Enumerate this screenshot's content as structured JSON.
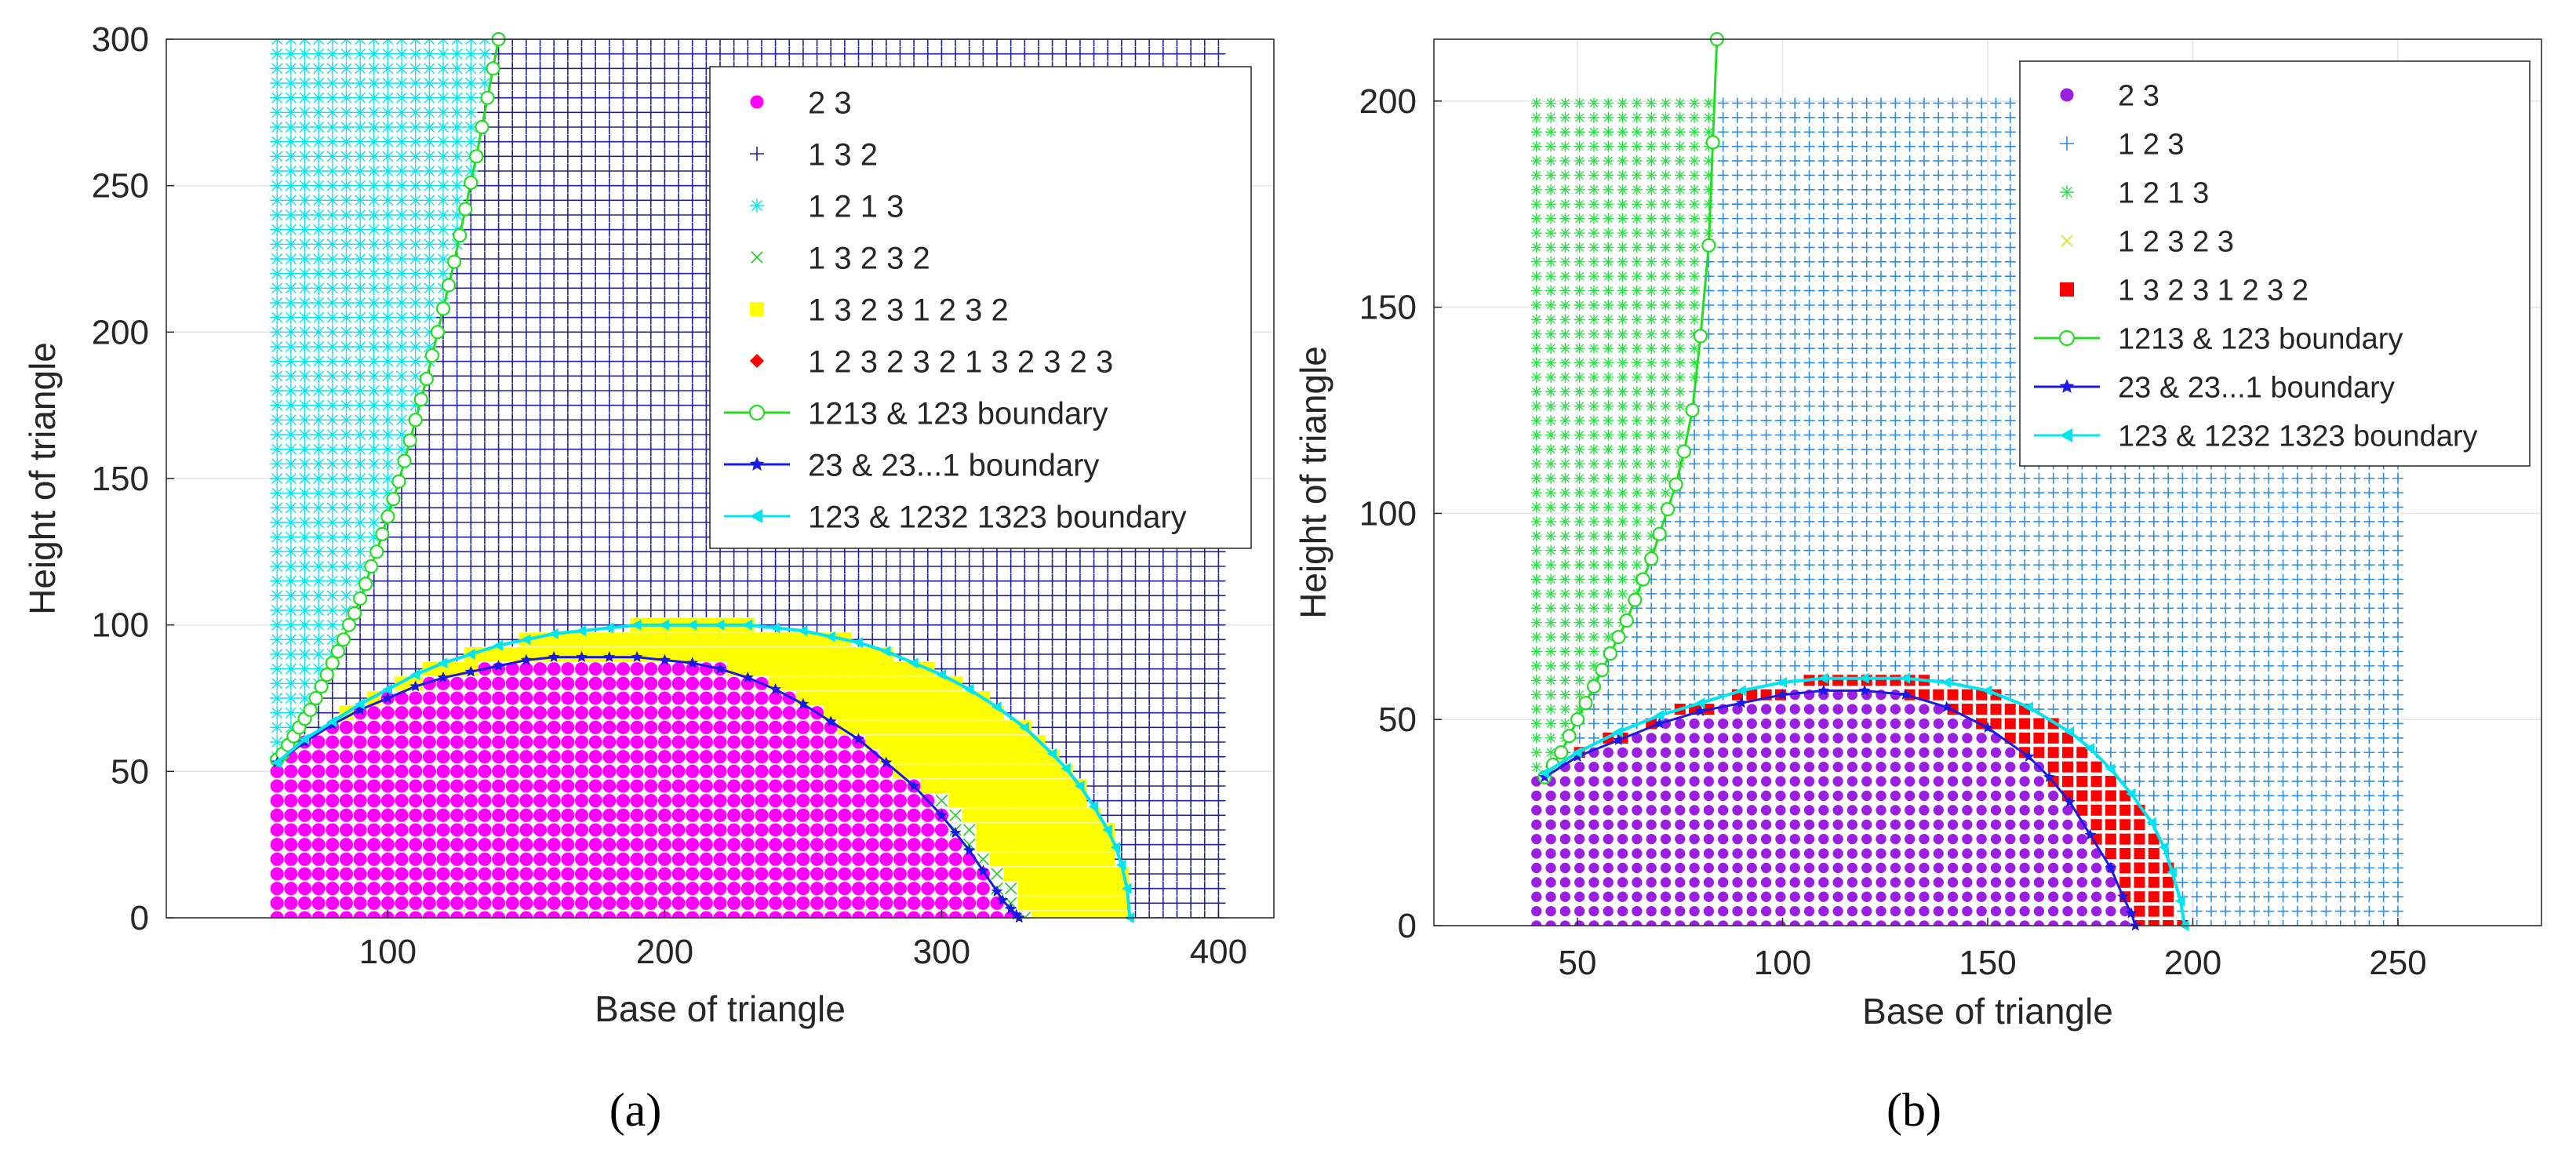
{
  "figure": {
    "panels": [
      {
        "caption": "(a)"
      },
      {
        "caption": "(b)"
      }
    ]
  },
  "chart_data": [
    {
      "type": "scatter",
      "panel_label": "(a)",
      "xlabel": "Base of triangle",
      "ylabel": "Height of triangle",
      "xlim": [
        20,
        420
      ],
      "ylim": [
        0,
        300
      ],
      "xticks": [
        100,
        200,
        300,
        400
      ],
      "yticks": [
        0,
        50,
        100,
        150,
        200,
        250,
        300
      ],
      "grid": true,
      "legend_position": "top-right",
      "grid_x_range": [
        60,
        400
      ],
      "grid_y_range": [
        0,
        300
      ],
      "grid_step": [
        5,
        5
      ],
      "regions": [
        {
          "name": "2  3",
          "color": "#ff00ff",
          "marker": "dot"
        },
        {
          "name": "1  3  2",
          "color": "#1f1f9a",
          "marker": "plus"
        },
        {
          "name": "1  2  1  3",
          "color": "#00e5ee",
          "marker": "asterisk"
        },
        {
          "name": "1  3  2  3  2",
          "color": "#22cc22",
          "marker": "cross"
        },
        {
          "name": "1  3  2  3  1  2  3  2",
          "color": "#ffff00",
          "marker": "square"
        },
        {
          "name": "1  2  3  2  3  2  1  3  2  3  2  3",
          "color": "#ff0000",
          "marker": "diamond"
        }
      ],
      "boundaries": [
        {
          "name": "1213 & 123 boundary",
          "color": "#22dd22",
          "marker": "circle",
          "x": [
            60,
            62,
            64,
            66,
            68,
            70,
            72,
            74,
            76,
            78,
            80,
            82,
            84,
            86,
            88,
            90,
            92,
            94,
            96,
            98,
            100,
            102,
            104,
            106,
            108,
            110,
            112,
            114,
            116,
            118,
            120,
            122,
            124,
            126,
            128,
            130,
            132,
            134,
            136,
            138,
            140
          ],
          "y": [
            54,
            56,
            59,
            62,
            65,
            68,
            71,
            75,
            79,
            83,
            87,
            91,
            95,
            100,
            104,
            109,
            114,
            120,
            125,
            131,
            137,
            143,
            149,
            156,
            163,
            170,
            177,
            184,
            192,
            200,
            208,
            216,
            224,
            233,
            242,
            251,
            260,
            270,
            280,
            290,
            300
          ]
        },
        {
          "name": "23 & 23...1 boundary",
          "color": "#1a1ae6",
          "marker": "star",
          "x": [
            60,
            70,
            80,
            90,
            100,
            110,
            120,
            130,
            140,
            150,
            160,
            170,
            180,
            190,
            200,
            210,
            220,
            230,
            240,
            250,
            260,
            270,
            280,
            290,
            300,
            305,
            310,
            315,
            320,
            322,
            325,
            327,
            328
          ],
          "y": [
            53,
            60,
            66,
            71,
            75,
            79,
            82,
            84,
            86,
            88,
            89,
            89,
            89,
            89,
            88,
            87,
            85,
            82,
            78,
            73,
            67,
            61,
            53,
            45,
            35,
            29,
            23,
            16,
            9,
            6,
            3,
            1,
            0
          ]
        },
        {
          "name": "123 & 1232 1323 boundary",
          "color": "#00e5ee",
          "marker": "triangle-left",
          "x": [
            60,
            70,
            80,
            90,
            100,
            110,
            120,
            130,
            140,
            150,
            160,
            170,
            180,
            190,
            200,
            210,
            220,
            230,
            240,
            250,
            260,
            270,
            280,
            290,
            300,
            310,
            320,
            330,
            340,
            345,
            350,
            355,
            360,
            363,
            365,
            367,
            368
          ],
          "y": [
            53,
            61,
            67,
            73,
            78,
            83,
            87,
            90,
            93,
            95,
            97,
            98,
            99,
            100,
            100,
            100,
            100,
            100,
            99,
            98,
            96,
            94,
            91,
            87,
            83,
            78,
            72,
            65,
            56,
            51,
            45,
            38,
            30,
            24,
            18,
            10,
            0
          ]
        }
      ]
    },
    {
      "type": "scatter",
      "panel_label": "(b)",
      "xlabel": "Base of triangle",
      "ylabel": "Height of triangle",
      "xlim": [
        15,
        285
      ],
      "ylim": [
        0,
        215
      ],
      "xticks": [
        50,
        100,
        150,
        200,
        250
      ],
      "yticks": [
        0,
        50,
        100,
        150,
        200
      ],
      "grid": true,
      "legend_position": "top-right",
      "grid_x_range": [
        40,
        250
      ],
      "grid_y_range": [
        0,
        200
      ],
      "grid_step": [
        3.5,
        3.5
      ],
      "regions": [
        {
          "name": "2  3",
          "color": "#9b1fe0",
          "marker": "dot"
        },
        {
          "name": "1  2  3",
          "color": "#2f8ce0",
          "marker": "plus"
        },
        {
          "name": "1  2  1  3",
          "color": "#2ee04a",
          "marker": "asterisk"
        },
        {
          "name": "1  2  3  2  3",
          "color": "#dede1e",
          "marker": "cross"
        },
        {
          "name": "1  3  2  3  1  2  3  2",
          "color": "#ff0000",
          "marker": "square"
        }
      ],
      "boundaries": [
        {
          "name": "1213 & 123 boundary",
          "color": "#22dd22",
          "marker": "circle",
          "x": [
            42,
            44,
            46,
            48,
            50,
            52,
            54,
            56,
            58,
            60,
            62,
            64,
            66,
            68,
            70,
            72,
            74,
            76,
            78,
            80,
            82,
            83,
            84
          ],
          "y": [
            36,
            39,
            42,
            46,
            50,
            54,
            58,
            62,
            66,
            70,
            74,
            79,
            84,
            89,
            95,
            101,
            107,
            115,
            125,
            143,
            165,
            190,
            215
          ]
        },
        {
          "name": "23 & 23...1 boundary",
          "color": "#1a1ae6",
          "marker": "star",
          "x": [
            42,
            50,
            60,
            70,
            80,
            90,
            100,
            110,
            120,
            130,
            140,
            150,
            160,
            165,
            170,
            175,
            180,
            183,
            185,
            186
          ],
          "y": [
            36,
            41,
            45,
            49,
            52,
            54,
            56,
            57,
            57,
            56,
            53,
            48,
            41,
            36,
            30,
            22,
            14,
            7,
            3,
            0
          ]
        },
        {
          "name": "123 & 1232 1323 boundary",
          "color": "#00e5ee",
          "marker": "triangle-left",
          "x": [
            42,
            50,
            60,
            70,
            80,
            90,
            100,
            110,
            120,
            130,
            140,
            150,
            160,
            170,
            175,
            180,
            185,
            190,
            193,
            195,
            197,
            198
          ],
          "y": [
            37,
            42,
            47,
            51,
            54,
            57,
            59,
            60,
            60,
            60,
            59,
            57,
            53,
            47,
            43,
            38,
            32,
            25,
            19,
            13,
            6,
            0
          ]
        }
      ]
    }
  ]
}
